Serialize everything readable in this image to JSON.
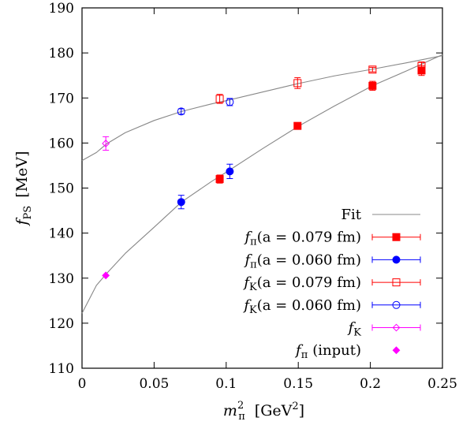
{
  "chart_data": {
    "type": "scatter",
    "title": "",
    "xlabel": {
      "base": "m",
      "sub": "π",
      "sup": "2",
      "unit_prefix": "[GeV",
      "unit_sup": "2",
      "unit_suffix": "]"
    },
    "ylabel": {
      "base": "f",
      "sub": "PS",
      "unit": "[MeV]"
    },
    "xlim": [
      0,
      0.25
    ],
    "ylim": [
      110,
      190
    ],
    "x_ticks": [
      0,
      0.05,
      0.1,
      0.15,
      0.2,
      0.25
    ],
    "x_tick_labels": [
      "0",
      "0.05",
      "0.1",
      "0.15",
      "0.2",
      "0.25"
    ],
    "y_ticks": [
      110,
      120,
      130,
      140,
      150,
      160,
      170,
      180,
      190
    ],
    "y_tick_labels": [
      "110",
      "120",
      "130",
      "140",
      "150",
      "160",
      "170",
      "180",
      "190"
    ],
    "grid": false,
    "legend_position": "bottom-right",
    "fits": [
      {
        "label": "Fit",
        "color": "#888888",
        "points": [
          [
            0,
            122.2
          ],
          [
            0.01,
            128.4
          ],
          [
            0.017,
            131.0
          ],
          [
            0.03,
            135.5
          ],
          [
            0.05,
            141.3
          ],
          [
            0.069,
            146.9
          ],
          [
            0.09,
            151.5
          ],
          [
            0.1,
            153.5
          ],
          [
            0.125,
            158.7
          ],
          [
            0.15,
            163.7
          ],
          [
            0.175,
            168.2
          ],
          [
            0.202,
            172.8
          ],
          [
            0.225,
            176.0
          ],
          [
            0.25,
            179.6
          ]
        ]
      },
      {
        "label": "",
        "color": "#888888",
        "points": [
          [
            0,
            156.1
          ],
          [
            0.01,
            157.9
          ],
          [
            0.017,
            159.8
          ],
          [
            0.03,
            162.3
          ],
          [
            0.05,
            165.0
          ],
          [
            0.069,
            167.0
          ],
          [
            0.09,
            168.7
          ],
          [
            0.1,
            169.4
          ],
          [
            0.125,
            171.3
          ],
          [
            0.15,
            173.2
          ],
          [
            0.175,
            174.9
          ],
          [
            0.2,
            176.3
          ],
          [
            0.225,
            177.8
          ],
          [
            0.25,
            179.4
          ]
        ]
      }
    ],
    "series": [
      {
        "label_base": "f",
        "label_sub": "π",
        "label_rest": "(a = 0.079 fm)",
        "color": "#ff0000",
        "marker": "square-filled",
        "points": [
          [
            0.0955,
            152.0,
            0.9
          ],
          [
            0.1495,
            163.8,
            0.5
          ],
          [
            0.2015,
            172.7,
            1.0
          ],
          [
            0.2355,
            176.1,
            1.1
          ]
        ]
      },
      {
        "label_base": "f",
        "label_sub": "π",
        "label_rest": "(a = 0.060 fm)",
        "color": "#0000ff",
        "marker": "circle-filled",
        "points": [
          [
            0.0688,
            146.9,
            1.5
          ],
          [
            0.1025,
            153.7,
            1.6
          ]
        ]
      },
      {
        "label_base": "f",
        "label_sub": "K",
        "label_rest": "(a = 0.079 fm)",
        "color": "#ff0000",
        "marker": "square-open",
        "points": [
          [
            0.0955,
            169.8,
            1.0
          ],
          [
            0.1495,
            173.3,
            1.2
          ],
          [
            0.2015,
            176.3,
            0.5
          ],
          [
            0.2355,
            177.1,
            0.9
          ]
        ]
      },
      {
        "label_base": "f",
        "label_sub": "K",
        "label_rest": "(a = 0.060 fm)",
        "color": "#0000ff",
        "marker": "circle-open",
        "points": [
          [
            0.0688,
            167.0,
            0.6
          ],
          [
            0.1025,
            169.1,
            0.8
          ]
        ]
      },
      {
        "label_base": "f",
        "label_sub": "K",
        "label_rest": "",
        "color": "#ff00ff",
        "marker": "diamond-open",
        "points": [
          [
            0.0165,
            159.9,
            1.5
          ]
        ]
      },
      {
        "label_base": "f",
        "label_sub": "π",
        "label_rest": "(input)",
        "color": "#ff00ff",
        "marker": "diamond-filled",
        "points": [
          [
            0.0165,
            130.6,
            0
          ]
        ]
      }
    ]
  }
}
